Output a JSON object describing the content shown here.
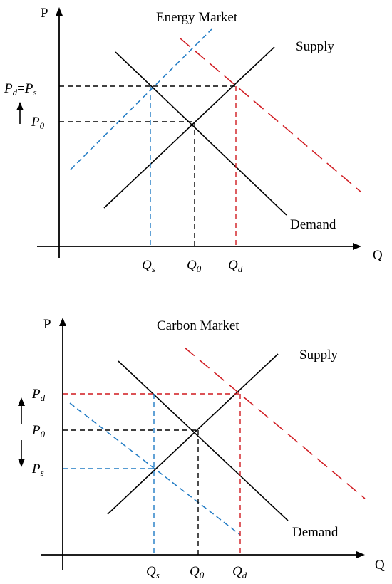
{
  "colors": {
    "axis": "#000000",
    "curve": "#000000",
    "reference_dashed": "#000000",
    "shifted_blue": "#1f7ac4",
    "shifted_red": "#d0191f"
  },
  "energy_market": {
    "title": "Energy Market",
    "axis_y": "P",
    "axis_x": "Q",
    "supply_label": "Supply",
    "demand_label": "Demand",
    "price_labels": {
      "pd_main": "P",
      "pd_sub": "d",
      "eq_mid": "=",
      "ps_main": "P",
      "ps_sub": "s",
      "p0_main": "P",
      "p0_sub": "0"
    },
    "quantity_labels": {
      "qs_main": "Q",
      "qs_sub": "s",
      "q0_main": "Q",
      "q0_sub": "0",
      "qd_main": "Q",
      "qd_sub": "d"
    },
    "arrow_indicators": [
      "up"
    ]
  },
  "carbon_market": {
    "title": "Carbon Market",
    "axis_y": "P",
    "axis_x": "Q",
    "supply_label": "Supply",
    "demand_label": "Demand",
    "price_labels": {
      "pd_main": "P",
      "pd_sub": "d",
      "p0_main": "P",
      "p0_sub": "0",
      "ps_main": "P",
      "ps_sub": "s"
    },
    "quantity_labels": {
      "qs_main": "Q",
      "qs_sub": "s",
      "q0_main": "Q",
      "q0_sub": "0",
      "qd_main": "Q",
      "qd_sub": "d"
    },
    "arrow_indicators": [
      "up",
      "down"
    ]
  }
}
